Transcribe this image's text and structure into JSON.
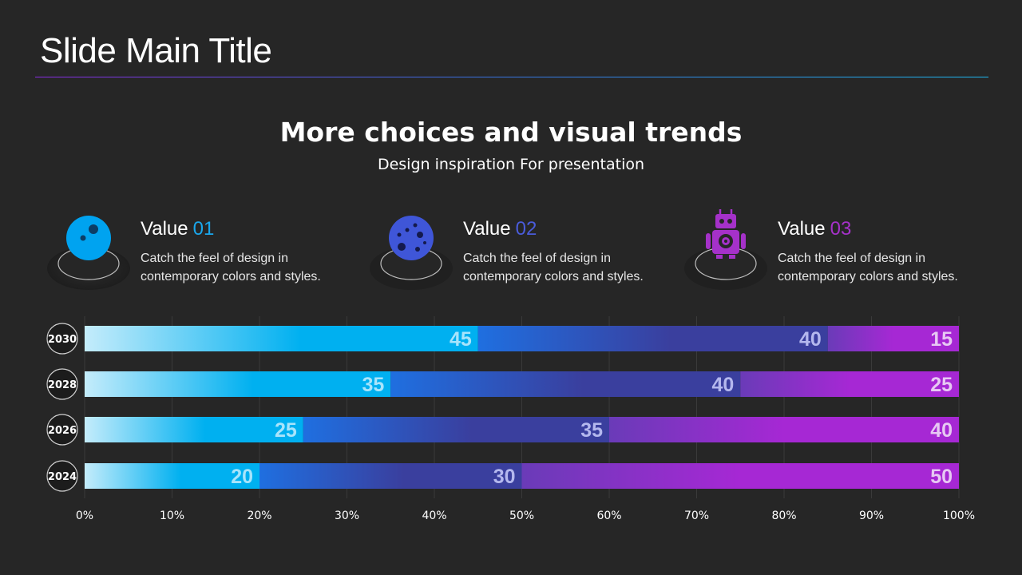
{
  "slide": {
    "title": "Slide Main Title",
    "heading": "More choices and visual trends",
    "subheading": "Design inspiration For presentation"
  },
  "values": [
    {
      "label": "Value",
      "number": "01",
      "description": "Catch the feel of design in contemporary colors and styles.",
      "icon": "planet-icon",
      "color": "#1aa7ec"
    },
    {
      "label": "Value",
      "number": "02",
      "description": "Catch the feel of design in contemporary colors and styles.",
      "icon": "moon-icon",
      "color": "#4a5cdb"
    },
    {
      "label": "Value",
      "number": "03",
      "description": "Catch the feel of design in contemporary colors and styles.",
      "icon": "robot-icon",
      "color": "#a531c9"
    }
  ],
  "colors": {
    "series1": "#00b0f0",
    "series2": "#3a3f9e",
    "series3": "#a628d4",
    "label1": "#a8e4fb",
    "label2": "#b4b8ee",
    "label3": "#e7c8f3"
  },
  "chart_data": {
    "type": "bar",
    "orientation": "horizontal",
    "stacked": "percent",
    "categories": [
      "2030",
      "2028",
      "2026",
      "2024"
    ],
    "series": [
      {
        "name": "Value 01",
        "values": [
          45,
          35,
          25,
          20
        ]
      },
      {
        "name": "Value 02",
        "values": [
          40,
          40,
          35,
          30
        ]
      },
      {
        "name": "Value 03",
        "values": [
          15,
          25,
          40,
          50
        ]
      }
    ],
    "xlim": [
      0,
      100
    ],
    "xticks": [
      "0%",
      "10%",
      "20%",
      "30%",
      "40%",
      "50%",
      "60%",
      "70%",
      "80%",
      "90%",
      "100%"
    ],
    "grid": true,
    "legend": "none"
  }
}
